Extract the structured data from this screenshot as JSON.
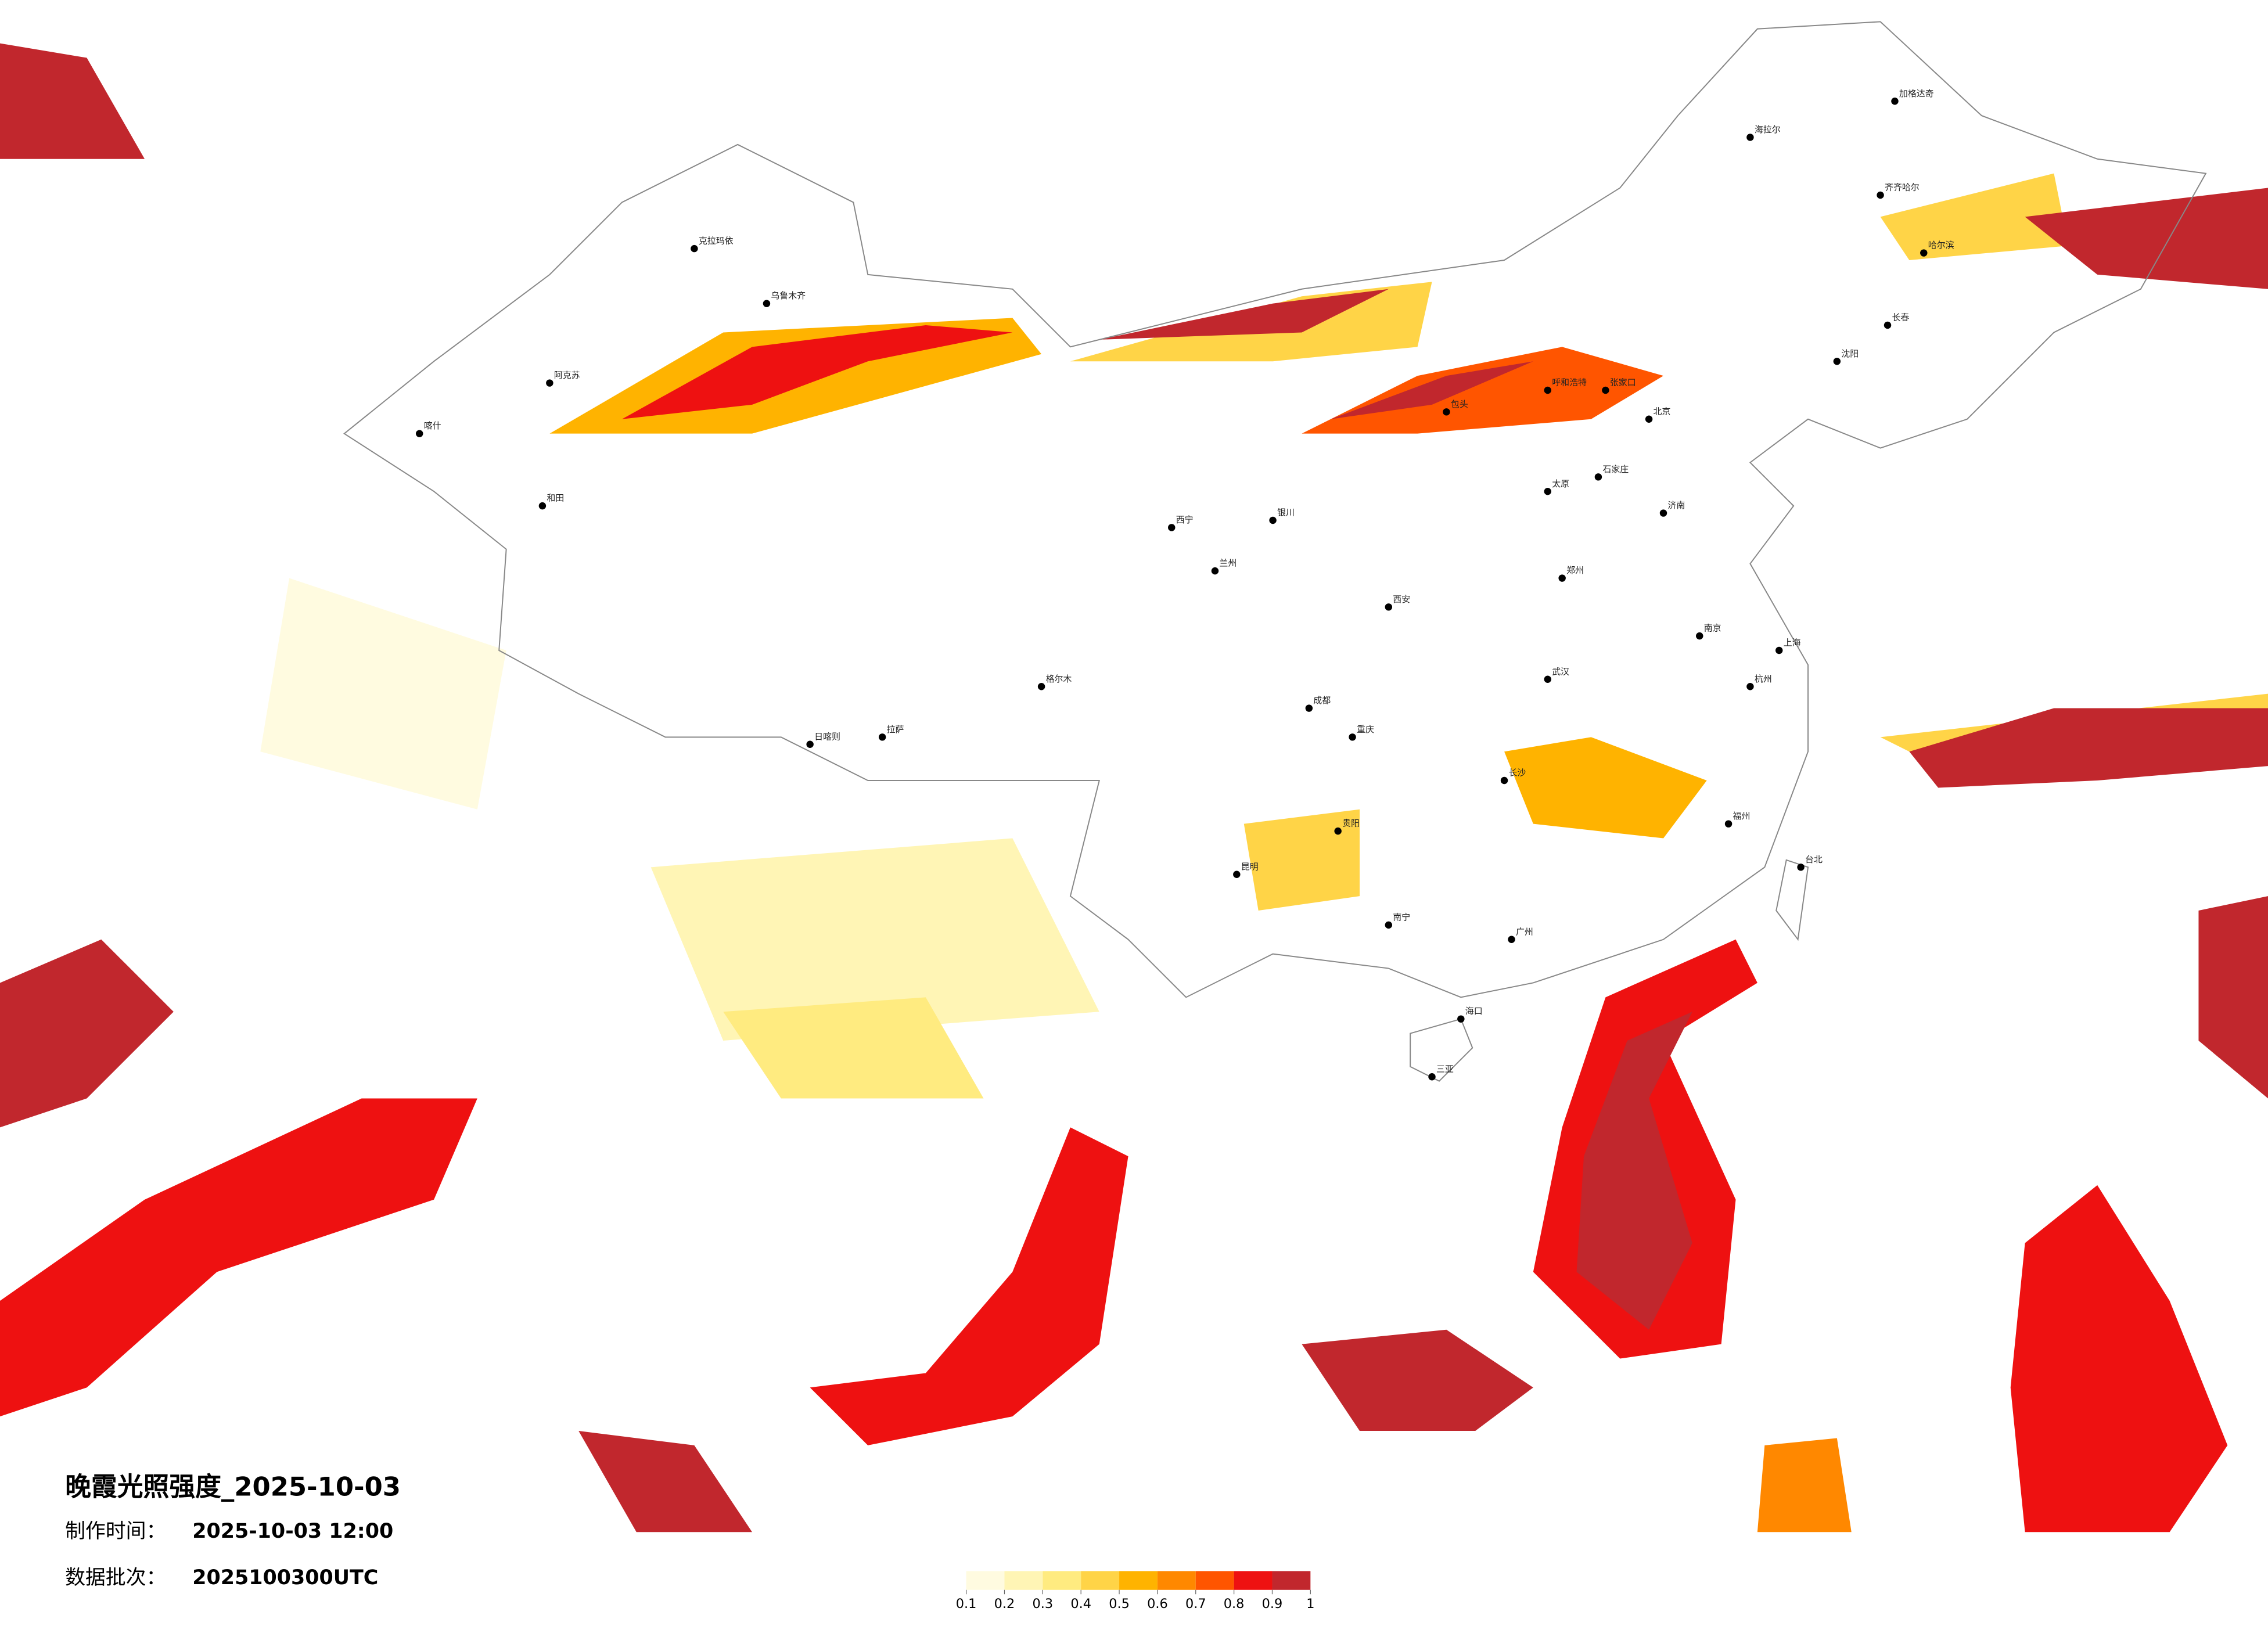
{
  "title": "晚霞光照强度_2025-10-03",
  "made_label": "制作时间：",
  "made_time": "2025-10-03 12:00",
  "batch_label": "数据批次：",
  "batch": "2025100300UTC",
  "legend": {
    "colors": [
      "#fffbe0",
      "#fff5b5",
      "#ffeb80",
      "#ffd447",
      "#ffb300",
      "#ff8800",
      "#ff5500",
      "#ee1111",
      "#c1272d"
    ],
    "ticks": [
      0.1,
      0.2,
      0.3,
      0.4,
      0.5,
      0.6,
      0.7,
      0.8,
      0.9,
      1
    ]
  },
  "cities": [
    "北京",
    "张家口",
    "呼和浩特",
    "包头",
    "银川",
    "兰州",
    "西宁",
    "成都",
    "重庆",
    "贵阳",
    "昆明",
    "南宁",
    "广州",
    "长沙",
    "武汉",
    "南京",
    "上海",
    "杭州",
    "福州",
    "台北",
    "济南",
    "郑州",
    "西安",
    "太原",
    "石家庄",
    "沈阳",
    "长春",
    "哈尔滨",
    "乌鲁木齐",
    "拉萨",
    "喀什",
    "和田",
    "日喀则",
    "海口",
    "三亚",
    "克拉玛依",
    "阿克苏",
    "格尔木",
    "齐齐哈尔",
    "海拉尔",
    "加格达奇"
  ]
}
